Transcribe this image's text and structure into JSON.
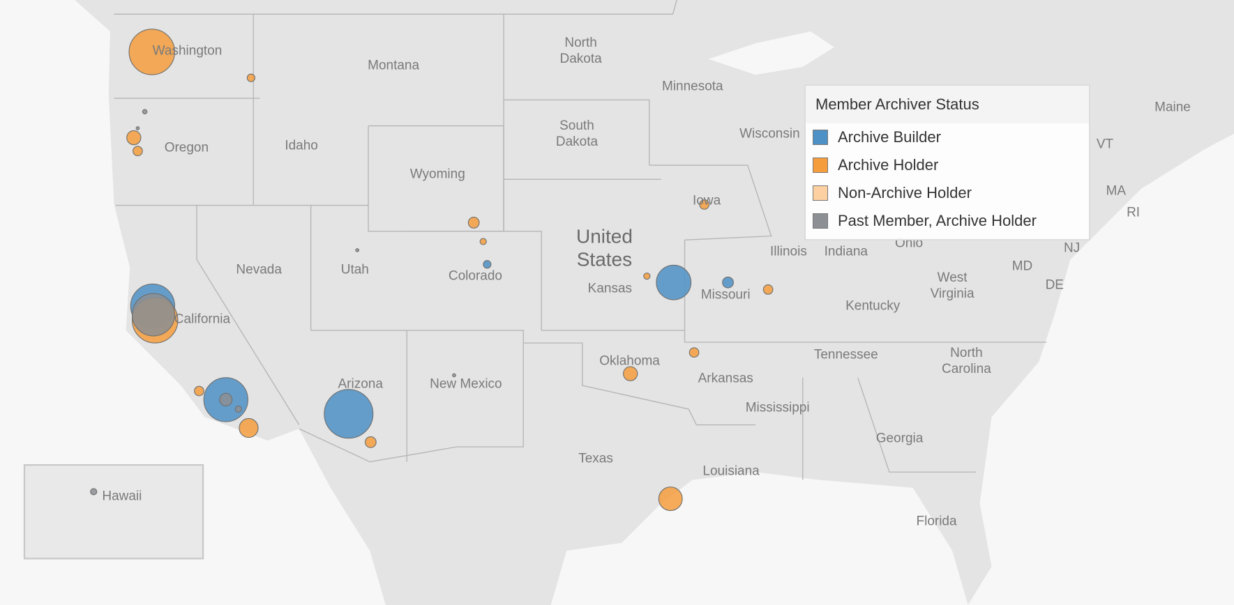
{
  "legend": {
    "title": "Member Archiver Status",
    "items": [
      {
        "label": "Archive Builder",
        "color": "#4e91c6"
      },
      {
        "label": "Archive Holder",
        "color": "#f59d3d"
      },
      {
        "label": "Non-Archive Holder",
        "color": "#fdd0a2"
      },
      {
        "label": "Past Member, Archive Holder",
        "color": "#8c8f93"
      }
    ]
  },
  "map": {
    "country_label": "United States",
    "inset_label": "Hawaii",
    "state_labels": [
      "Washington",
      "Montana",
      "North Dakota",
      "Minnesota",
      "Oregon",
      "Idaho",
      "South Dakota",
      "Wyoming",
      "Wisconsin",
      "Iowa",
      "Nevada",
      "Utah",
      "Colorado",
      "Kansas",
      "Missouri",
      "Illinois",
      "Indiana",
      "Ohio",
      "California",
      "West Virginia",
      "Kentucky",
      "Arizona",
      "New Mexico",
      "Oklahoma",
      "Arkansas",
      "Tennessee",
      "North Carolina",
      "Mississippi",
      "Georgia",
      "Texas",
      "Louisiana",
      "Florida",
      "Maine",
      "VT",
      "MA",
      "RI",
      "NJ",
      "MD",
      "DE"
    ]
  },
  "markers": [
    {
      "status": "Archive Holder",
      "value": 210
    },
    {
      "status": "Archive Holder",
      "value": 6
    },
    {
      "status": "Past Member, Archive Holder",
      "value": 2
    },
    {
      "status": "Past Member, Archive Holder",
      "value": 1
    },
    {
      "status": "Archive Holder",
      "value": 20
    },
    {
      "status": "Archive Holder",
      "value": 9
    },
    {
      "status": "Archive Holder",
      "value": 12
    },
    {
      "status": "Archive Holder",
      "value": 4
    },
    {
      "status": "Archive Builder",
      "value": 6
    },
    {
      "status": "Past Member, Archive Holder",
      "value": 1
    },
    {
      "status": "Archive Builder",
      "value": 196
    },
    {
      "status": "Archive Holder",
      "value": 210
    },
    {
      "status": "Past Member, Archive Holder",
      "value": 182
    },
    {
      "status": "Archive Holder",
      "value": 9
    },
    {
      "status": "Archive Builder",
      "value": 196
    },
    {
      "status": "Past Member, Archive Holder",
      "value": 16
    },
    {
      "status": "Past Member, Archive Holder",
      "value": 4
    },
    {
      "status": "Archive Holder",
      "value": 36
    },
    {
      "status": "Archive Builder",
      "value": 240
    },
    {
      "status": "Archive Holder",
      "value": 12
    },
    {
      "status": "Past Member, Archive Holder",
      "value": 1
    },
    {
      "status": "Archive Holder",
      "value": 4
    },
    {
      "status": "Archive Builder",
      "value": 121
    },
    {
      "status": "Archive Builder",
      "value": 12
    },
    {
      "status": "Archive Holder",
      "value": 9
    },
    {
      "status": "Archive Holder",
      "value": 9
    },
    {
      "status": "Archive Holder",
      "value": 9
    },
    {
      "status": "Archive Holder",
      "value": 20
    },
    {
      "status": "Archive Holder",
      "value": 56
    },
    {
      "status": "Past Member, Archive Holder",
      "value": 4
    }
  ]
}
